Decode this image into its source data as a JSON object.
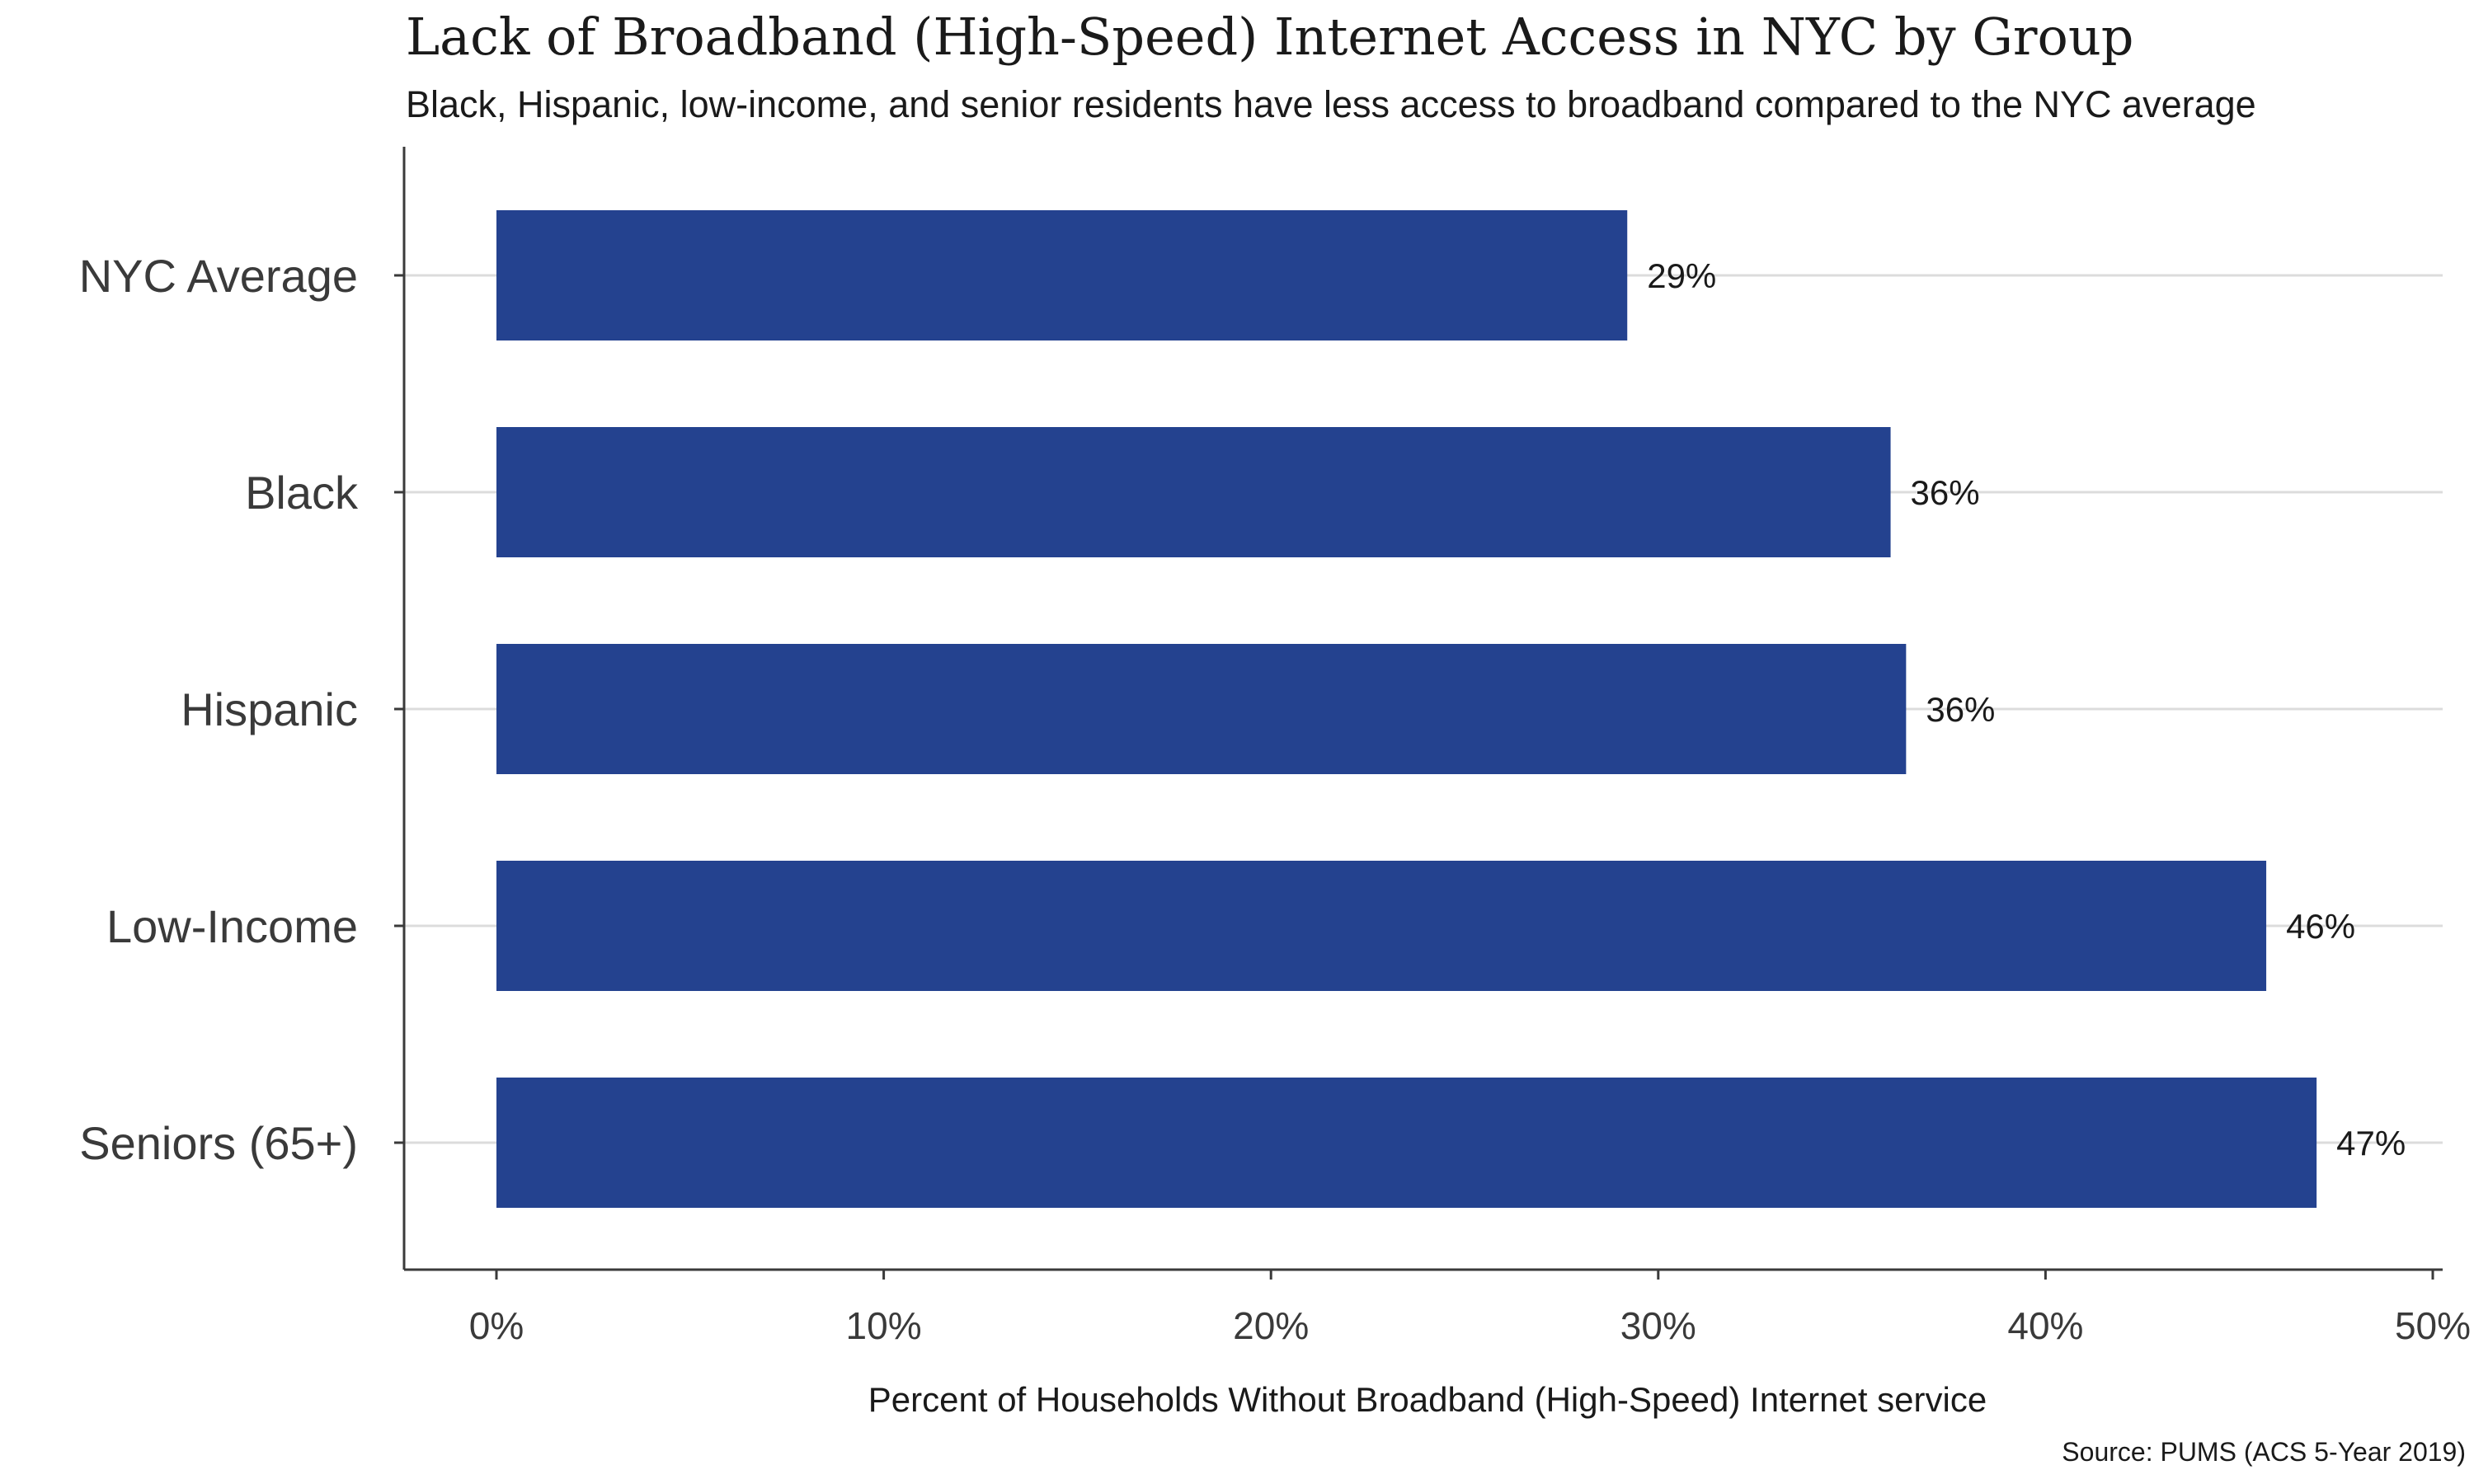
{
  "chart_data": {
    "type": "bar",
    "orientation": "horizontal",
    "title": "Lack of Broadband (High-Speed) Internet Access in NYC by Group",
    "subtitle": "Black, Hispanic, low-income, and senior residents have less access to broadband compared to the NYC average",
    "categories": [
      "NYC Average",
      "Black",
      "Hispanic",
      "Low-Income",
      "Seniors (65+)"
    ],
    "values": [
      29.2,
      36.0,
      36.4,
      45.7,
      47.0
    ],
    "value_labels": [
      "29%",
      "36%",
      "36%",
      "46%",
      "47%"
    ],
    "xlabel": "Percent of Households Without Broadband (High-Speed) Internet service",
    "ylabel": "",
    "xlim": [
      0,
      50
    ],
    "x_ticks": [
      0,
      10,
      20,
      30,
      40,
      50
    ],
    "x_tick_labels": [
      "0%",
      "10%",
      "20%",
      "30%",
      "40%",
      "50%"
    ],
    "caption": "Source: PUMS (ACS 5-Year 2019)",
    "grid": "horizontal",
    "legend": "none",
    "bar_color": "#24428f",
    "grid_color": "#dcdcdc",
    "axis_color": "#3a3a3a"
  }
}
